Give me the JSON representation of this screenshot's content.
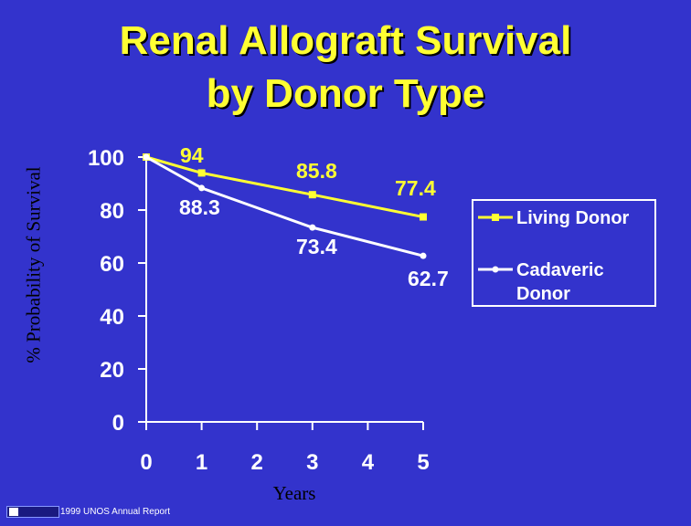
{
  "chart_data": {
    "type": "line",
    "title": "Renal Allograft Survival",
    "subtitle": "by Donor Type",
    "xlabel": "Years",
    "ylabel": "% Probability of Survival",
    "x": [
      0,
      1,
      2,
      3,
      4,
      5
    ],
    "x_ticks": [
      "0",
      "1",
      "2",
      "3",
      "4",
      "5"
    ],
    "y_ticks": [
      "0",
      "20",
      "40",
      "60",
      "80",
      "100"
    ],
    "xlim": [
      0,
      5
    ],
    "ylim": [
      0,
      100
    ],
    "grid": false,
    "legend_position": "right",
    "series": [
      {
        "name": "Living Donor",
        "color": "#ffff33",
        "marker": "square",
        "points": [
          [
            0,
            100
          ],
          [
            1,
            94
          ],
          [
            3,
            85.8
          ],
          [
            5,
            77.4
          ]
        ],
        "labels": [
          null,
          "94",
          "85.8",
          "77.4"
        ]
      },
      {
        "name": "Cadaveric Donor",
        "color": "#ffffff",
        "marker": "circle",
        "points": [
          [
            0,
            100
          ],
          [
            1,
            88.3
          ],
          [
            3,
            73.4
          ],
          [
            5,
            62.7
          ]
        ],
        "labels": [
          null,
          "88.3",
          "73.4",
          "62.7"
        ]
      }
    ]
  },
  "footer": {
    "source": "1999 UNOS Annual Report"
  }
}
